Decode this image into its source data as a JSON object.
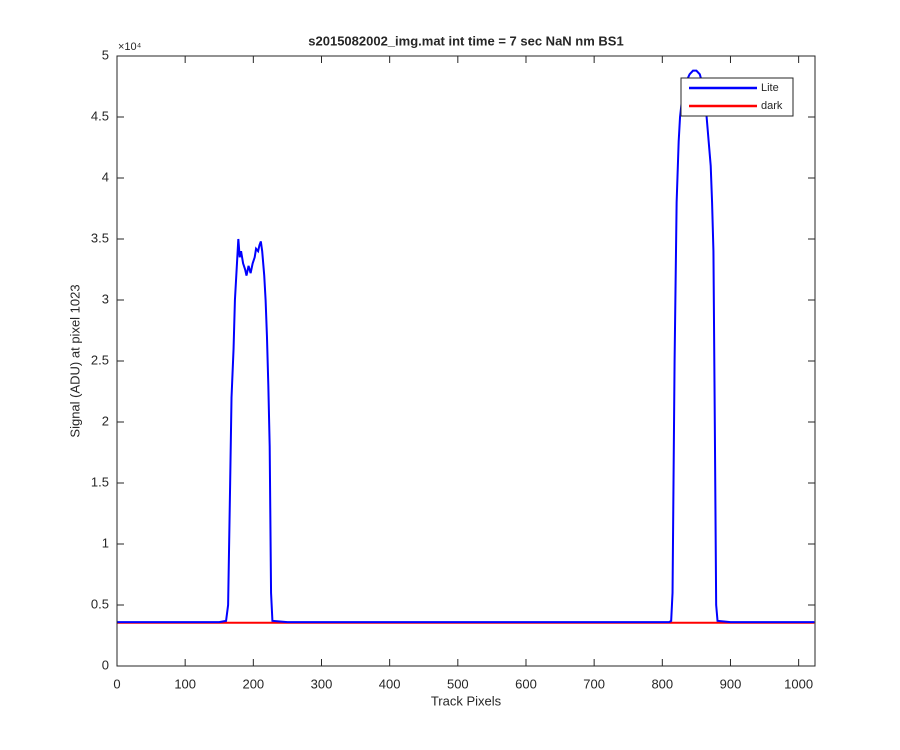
{
  "chart_data": {
    "type": "line",
    "title": "s2015082002_img.mat int time = 7 sec  NaN nm BS1",
    "x_label": "Track Pixels",
    "y_label": "Signal (ADU) at pixel 1023",
    "y_exponent_label": "×10⁴",
    "x": [
      0,
      50,
      100,
      150,
      160,
      163,
      166,
      168,
      171,
      173,
      176,
      178,
      180,
      182,
      185,
      188,
      190,
      193,
      196,
      199,
      202,
      204,
      207,
      209,
      211,
      213,
      216,
      218,
      220,
      222,
      224,
      226,
      228,
      250,
      300,
      350,
      400,
      450,
      500,
      550,
      600,
      650,
      700,
      750,
      800,
      810,
      813,
      815,
      818,
      821,
      824,
      826,
      829,
      832,
      836,
      840,
      845,
      850,
      855,
      860,
      863,
      865,
      868,
      871,
      873,
      875,
      877,
      879,
      881,
      900,
      950,
      1000,
      1023
    ],
    "series": [
      {
        "name": "Lite",
        "color": "#0000ff",
        "values": [
          0.36,
          0.36,
          0.36,
          0.36,
          0.37,
          0.5,
          1.5,
          2.2,
          2.6,
          3.0,
          3.3,
          3.5,
          3.35,
          3.4,
          3.3,
          3.25,
          3.2,
          3.28,
          3.22,
          3.3,
          3.35,
          3.42,
          3.4,
          3.45,
          3.48,
          3.4,
          3.2,
          3.0,
          2.7,
          2.3,
          1.8,
          0.6,
          0.37,
          0.36,
          0.36,
          0.36,
          0.36,
          0.36,
          0.36,
          0.36,
          0.36,
          0.36,
          0.36,
          0.36,
          0.36,
          0.36,
          0.37,
          0.6,
          2.5,
          3.8,
          4.3,
          4.5,
          4.65,
          4.72,
          4.8,
          4.85,
          4.88,
          4.88,
          4.85,
          4.75,
          4.6,
          4.5,
          4.3,
          4.1,
          3.8,
          3.4,
          2.0,
          0.5,
          0.37,
          0.36,
          0.36,
          0.36,
          0.36
        ]
      },
      {
        "name": "dark",
        "color": "#ff0000",
        "values": [
          0.355,
          0.355,
          0.355,
          0.355,
          0.355,
          0.355,
          0.355,
          0.355,
          0.355,
          0.355,
          0.355,
          0.355,
          0.355,
          0.355,
          0.355,
          0.355,
          0.355,
          0.355,
          0.355,
          0.355,
          0.355,
          0.355,
          0.355,
          0.355,
          0.355,
          0.355,
          0.355,
          0.355,
          0.355,
          0.355,
          0.355,
          0.355,
          0.355,
          0.355,
          0.355,
          0.355,
          0.355,
          0.355,
          0.355,
          0.355,
          0.355,
          0.355,
          0.355,
          0.355,
          0.355,
          0.355,
          0.355,
          0.355,
          0.355,
          0.355,
          0.355,
          0.355,
          0.355,
          0.355,
          0.355,
          0.355,
          0.355,
          0.355,
          0.355,
          0.355,
          0.355,
          0.355,
          0.355,
          0.355,
          0.355,
          0.355,
          0.355,
          0.355,
          0.355,
          0.355,
          0.355,
          0.355,
          0.355
        ]
      }
    ],
    "xlim": [
      0,
      1024
    ],
    "xticks": [
      0,
      100,
      200,
      300,
      400,
      500,
      600,
      700,
      800,
      900,
      1000
    ],
    "ylim": [
      0,
      5
    ],
    "yticks": [
      0,
      0.5,
      1,
      1.5,
      2,
      2.5,
      3,
      3.5,
      4,
      4.5,
      5
    ],
    "legend": "northeast",
    "grid": false
  }
}
